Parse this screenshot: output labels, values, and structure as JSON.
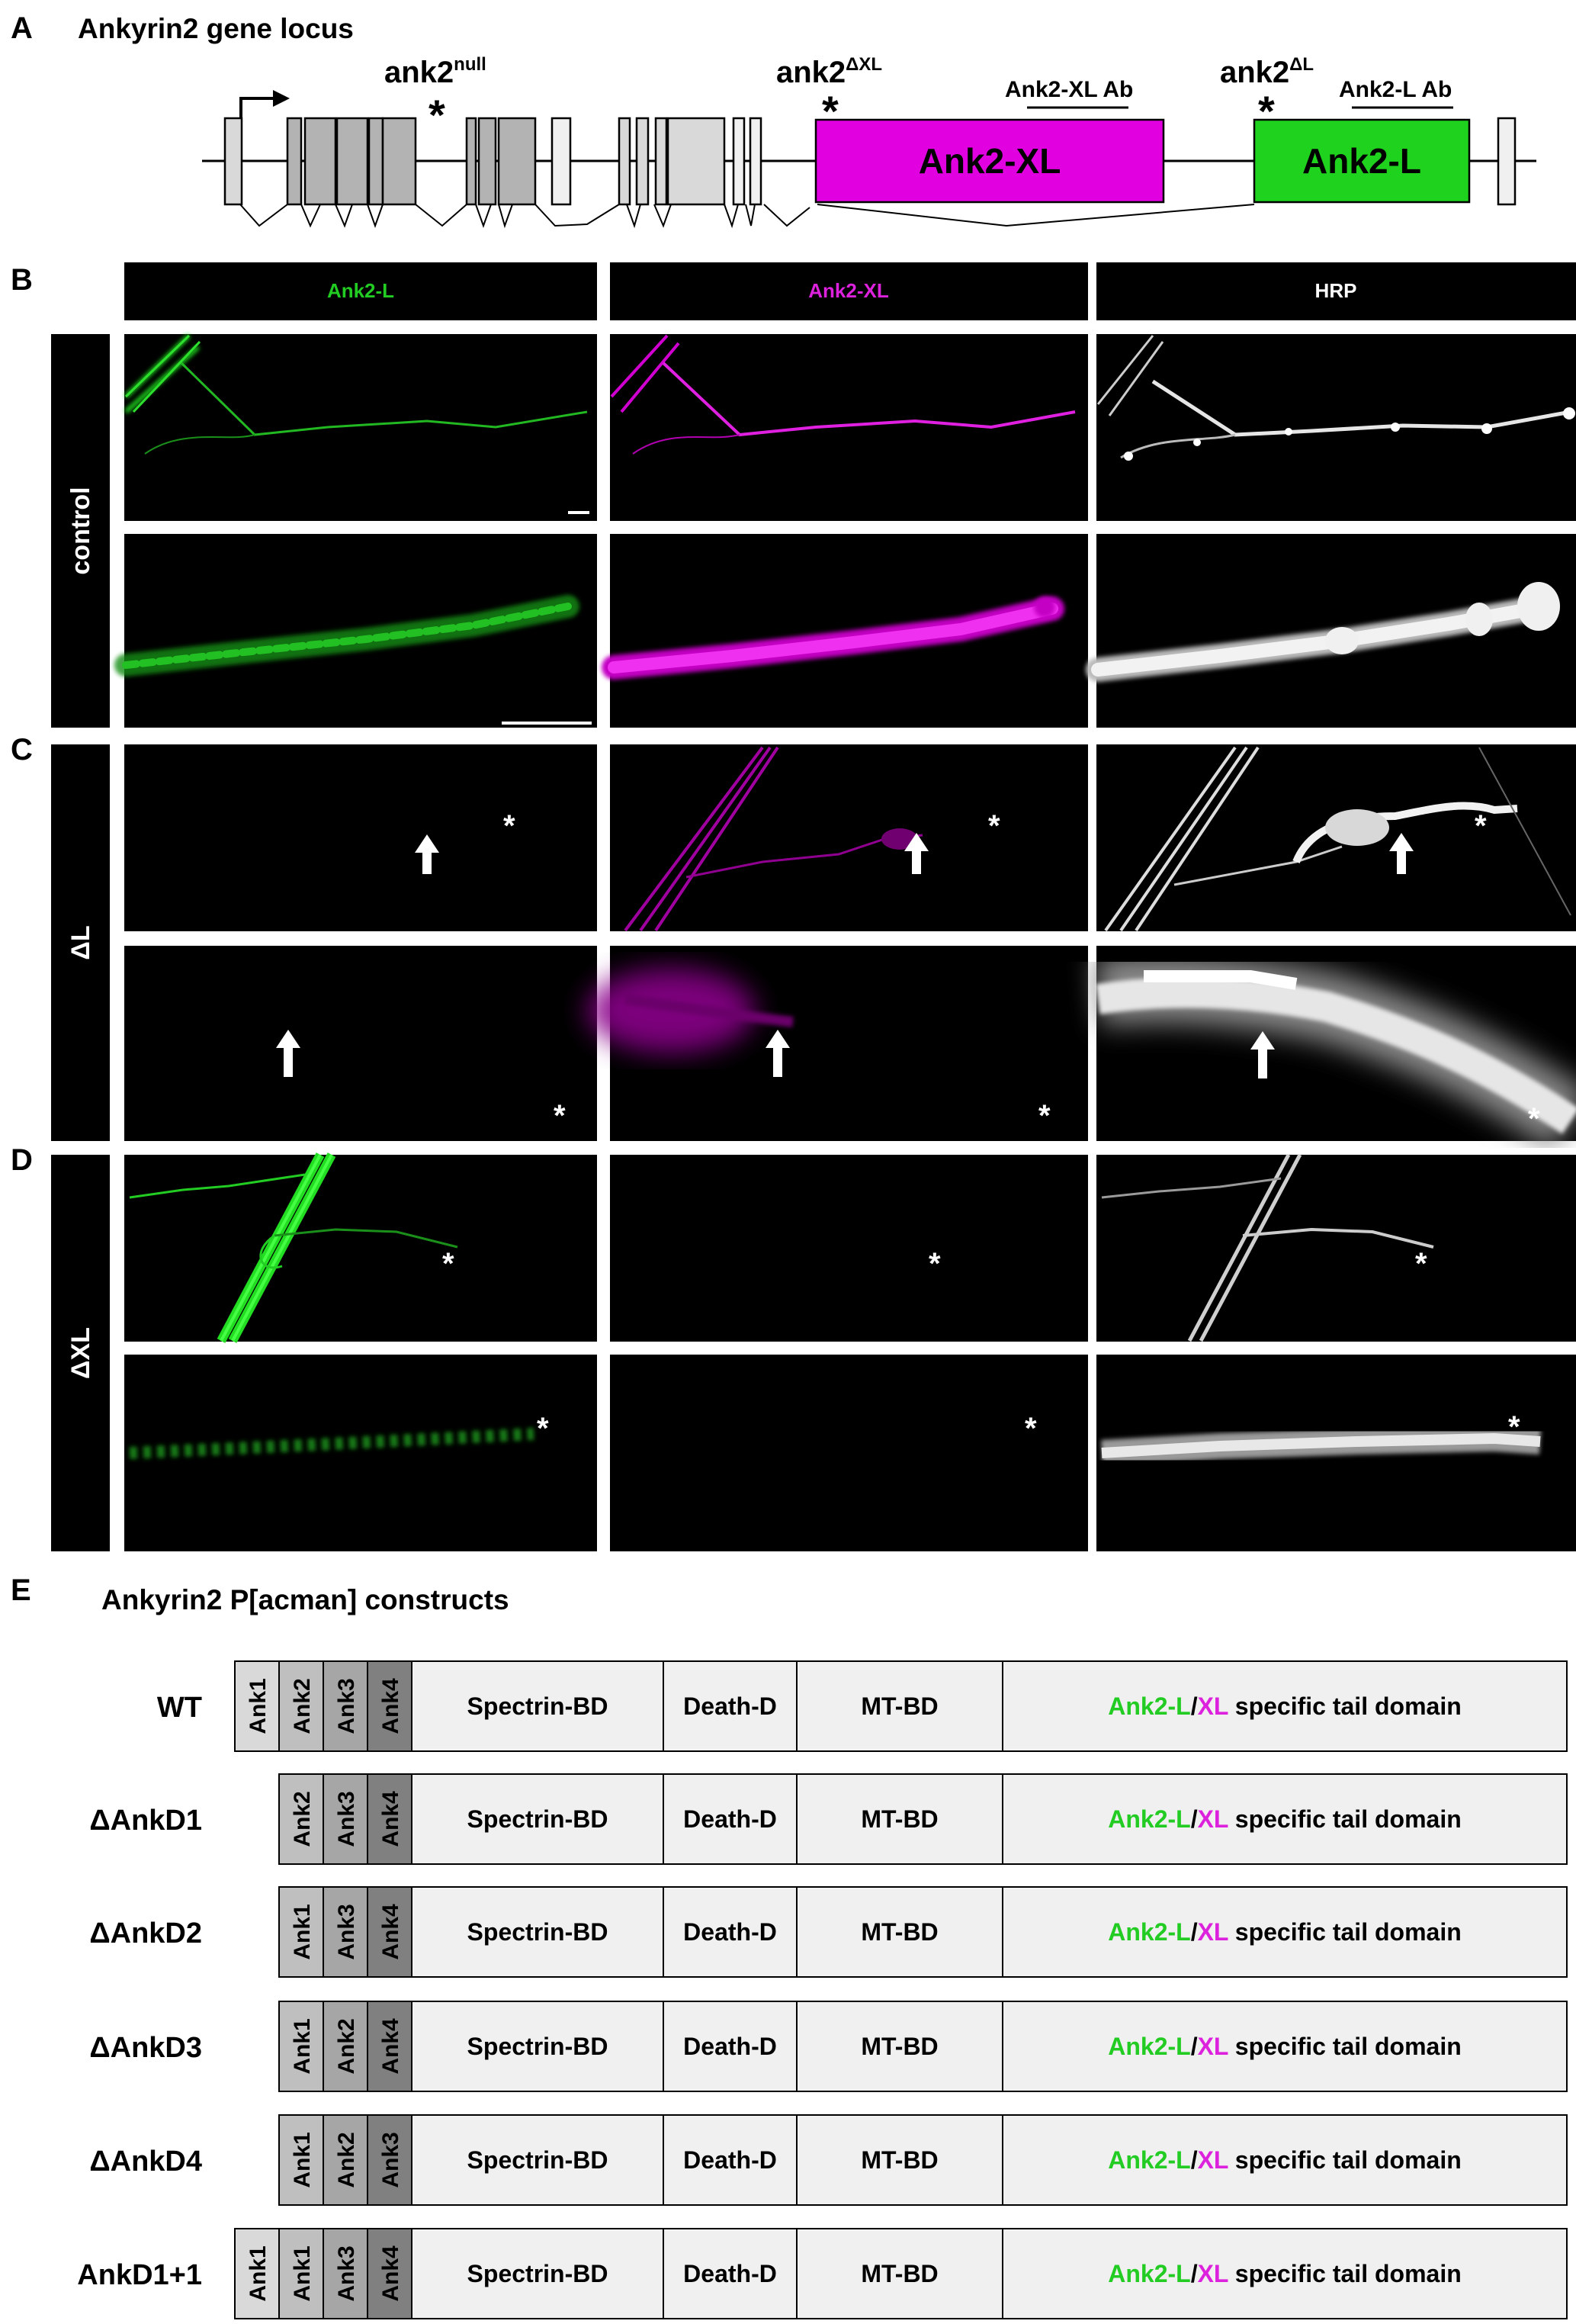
{
  "panel_letters": {
    "a": "A",
    "b": "B",
    "c": "C",
    "d": "D",
    "e": "E"
  },
  "gene_locus": {
    "title": "Ankyrin2 gene locus",
    "allele_null": "ank2",
    "allele_null_sup": "null",
    "allele_dxl": "ank2",
    "allele_dxl_sup": "ΔXL",
    "allele_dl": "ank2",
    "allele_dl_sup": "ΔL",
    "asterisk": "*",
    "ab_xl": "Ank2-XL Ab",
    "ab_l": "Ank2-L Ab",
    "exon_xl": "Ank2-XL",
    "exon_l": "Ank2-L",
    "colors": {
      "xl": "#e000e0",
      "l": "#1ed21e",
      "exon_light": "#d9d9d9",
      "exon_dark": "#b3b3b3"
    }
  },
  "micrographs": {
    "columns": [
      "Ank2-L",
      "Ank2-XL",
      "HRP"
    ],
    "column_colors": [
      "#22cc22",
      "#dd22dd",
      "#ffffff"
    ],
    "rows": [
      "control",
      "ΔL",
      "ΔXL"
    ],
    "asterisk": "*"
  },
  "constructs": {
    "title": "Ankyrin2 P[acman] constructs",
    "domains": {
      "spectrin": "Spectrin-BD",
      "death": "Death-D",
      "mt": "MT-BD",
      "tail_l": "Ank2-L",
      "tail_sep": "/",
      "tail_xl": "XL",
      "tail_rest": " specific tail domain"
    },
    "items": [
      {
        "name": "WT",
        "anks": [
          "Ank1",
          "Ank2",
          "Ank3",
          "Ank4"
        ]
      },
      {
        "name": "ΔAnkD1",
        "anks": [
          "Ank2",
          "Ank3",
          "Ank4"
        ]
      },
      {
        "name": "ΔAnkD2",
        "anks": [
          "Ank1",
          "Ank3",
          "Ank4"
        ]
      },
      {
        "name": "ΔAnkD3",
        "anks": [
          "Ank1",
          "Ank2",
          "Ank4"
        ]
      },
      {
        "name": "ΔAnkD4",
        "anks": [
          "Ank1",
          "Ank2",
          "Ank3"
        ]
      },
      {
        "name": "AnkD1+1",
        "anks": [
          "Ank1",
          "Ank1",
          "Ank3",
          "Ank4"
        ]
      }
    ],
    "ank_colors": [
      "#d9d9d9",
      "#bfbfbf",
      "#a6a6a6",
      "#808080"
    ],
    "domain_fill": "#f0f0f0"
  }
}
